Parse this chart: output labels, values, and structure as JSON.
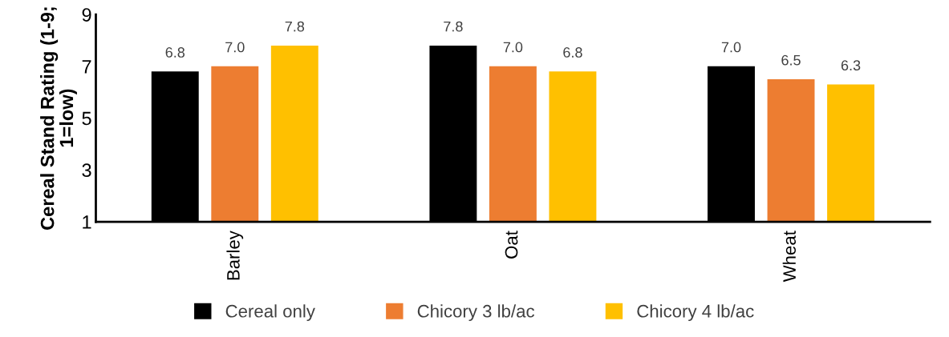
{
  "chart_data": {
    "type": "bar",
    "ylabel": "Cereal Stand Rating (1-9;\n1=low)",
    "categories": [
      "Barley",
      "Oat",
      "Wheat"
    ],
    "series": [
      {
        "name": "Cereal only",
        "color": "#000000",
        "values": [
          6.8,
          7.8,
          7.0
        ],
        "value_labels": [
          "6.8",
          "7.8",
          "7.0"
        ]
      },
      {
        "name": "Chicory 3 lb/ac",
        "color": "#ed7d31",
        "values": [
          7.0,
          7.0,
          6.5
        ],
        "value_labels": [
          "7.0",
          "7.0",
          "6.5"
        ]
      },
      {
        "name": "Chicory 4 lb/ac",
        "color": "#ffc000",
        "values": [
          7.8,
          6.8,
          6.3
        ],
        "value_labels": [
          "7.8",
          "6.8",
          "6.3"
        ]
      }
    ],
    "ylim": [
      1,
      9
    ],
    "yticks": [
      1,
      3,
      5,
      7,
      9
    ],
    "grid": false,
    "legend": "bottom"
  }
}
